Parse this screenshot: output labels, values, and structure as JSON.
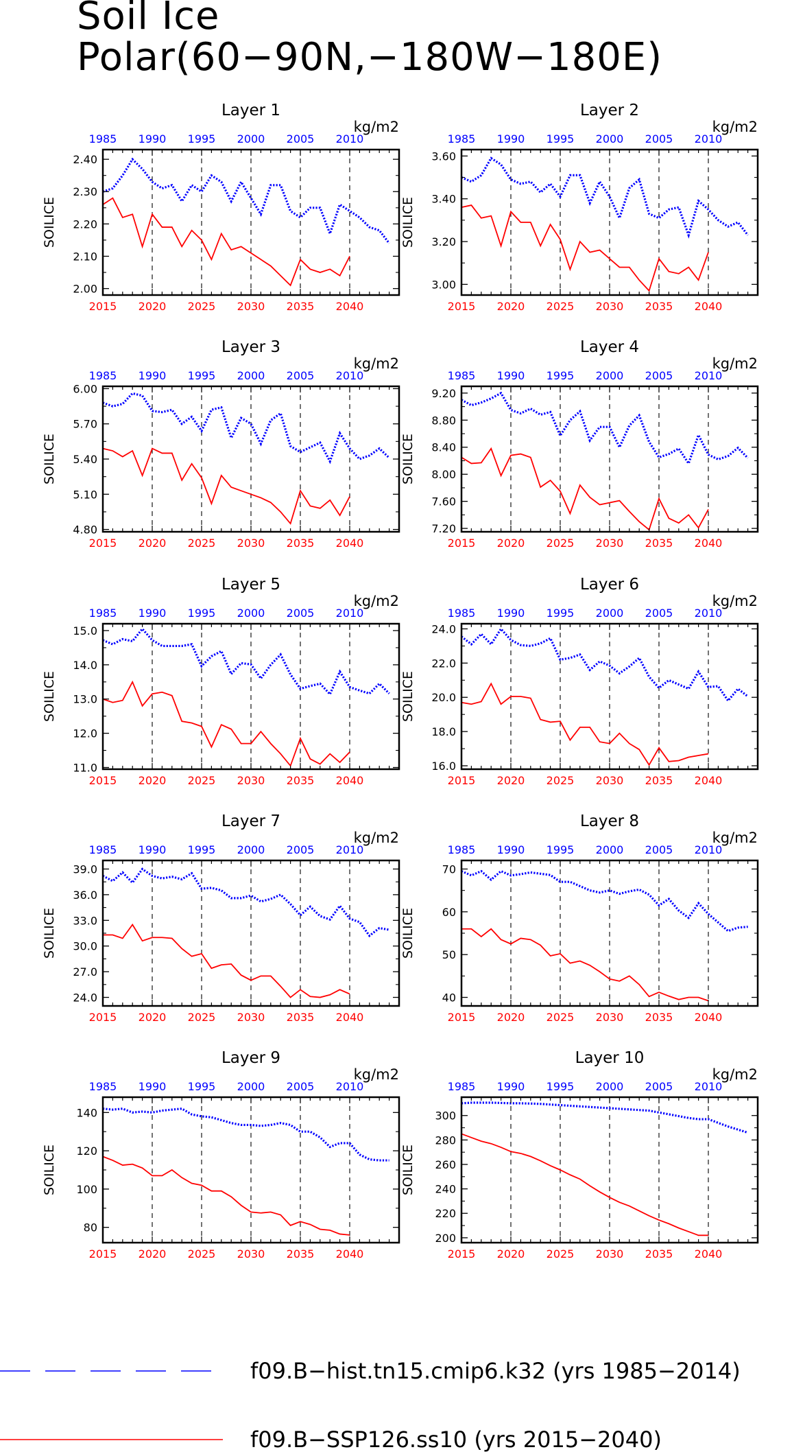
{
  "title": {
    "line1": "Soil Ice",
    "line2": "Polar(60−90N,−180W−180E)"
  },
  "colors": {
    "hist": "#0000ff",
    "ssp": "#ff0000",
    "axis": "#000000"
  },
  "legend": [
    {
      "label": "f09.B−hist.tn15.cmip6.k32 (yrs 1985−2014)",
      "color": "#0000ff",
      "style": "dashed"
    },
    {
      "label": "f09.B−SSP126.ss10 (yrs 2015−2040)",
      "color": "#ff0000",
      "style": "solid"
    }
  ],
  "chart_data": [
    {
      "type": "line",
      "title": "Layer 1",
      "ylabel": "SOILICE",
      "units": "kg/m2",
      "x_top_ticks": [
        "1985",
        "1990",
        "1995",
        "2000",
        "2005",
        "2010"
      ],
      "x_bottom_ticks": [
        "2015",
        "2020",
        "2025",
        "2030",
        "2035",
        "2040"
      ],
      "ylim": [
        1.98,
        2.43
      ],
      "yticks": [
        "2.00",
        "2.10",
        "2.20",
        "2.30",
        "2.40"
      ],
      "ytick_values": [
        2.0,
        2.1,
        2.2,
        2.3,
        2.4
      ],
      "series": [
        {
          "years": "1985-2014",
          "values": [
            2.3,
            2.31,
            2.35,
            2.4,
            2.37,
            2.33,
            2.31,
            2.32,
            2.27,
            2.32,
            2.3,
            2.35,
            2.33,
            2.27,
            2.33,
            2.28,
            2.23,
            2.32,
            2.32,
            2.24,
            2.22,
            2.25,
            2.25,
            2.17,
            2.26,
            2.24,
            2.22,
            2.19,
            2.18,
            2.14
          ]
        },
        {
          "years": "2015-2040",
          "values": [
            2.26,
            2.28,
            2.22,
            2.23,
            2.13,
            2.23,
            2.19,
            2.19,
            2.13,
            2.18,
            2.15,
            2.09,
            2.17,
            2.12,
            2.13,
            2.11,
            2.09,
            2.07,
            2.04,
            2.01,
            2.09,
            2.06,
            2.05,
            2.06,
            2.04,
            2.1
          ]
        }
      ]
    },
    {
      "type": "line",
      "title": "Layer 2",
      "ylabel": "SOILICE",
      "units": "kg/m2",
      "x_top_ticks": [
        "1985",
        "1990",
        "1995",
        "2000",
        "2005",
        "2010"
      ],
      "x_bottom_ticks": [
        "2015",
        "2020",
        "2025",
        "2030",
        "2035",
        "2040"
      ],
      "ylim": [
        2.95,
        3.63
      ],
      "yticks": [
        "3.00",
        "3.20",
        "3.40",
        "3.60"
      ],
      "ytick_values": [
        3.0,
        3.2,
        3.4,
        3.6
      ],
      "series": [
        {
          "years": "1985-2014",
          "values": [
            3.5,
            3.48,
            3.51,
            3.59,
            3.56,
            3.49,
            3.47,
            3.48,
            3.43,
            3.47,
            3.41,
            3.51,
            3.51,
            3.38,
            3.48,
            3.41,
            3.31,
            3.45,
            3.49,
            3.33,
            3.31,
            3.35,
            3.36,
            3.23,
            3.39,
            3.35,
            3.3,
            3.27,
            3.29,
            3.23
          ]
        },
        {
          "years": "2015-2040",
          "values": [
            3.36,
            3.37,
            3.31,
            3.32,
            3.18,
            3.34,
            3.29,
            3.29,
            3.18,
            3.28,
            3.21,
            3.07,
            3.2,
            3.15,
            3.16,
            3.12,
            3.08,
            3.08,
            3.02,
            2.97,
            3.12,
            3.06,
            3.05,
            3.08,
            3.02,
            3.15
          ]
        }
      ]
    },
    {
      "type": "line",
      "title": "Layer 3",
      "ylabel": "SOILICE",
      "units": "kg/m2",
      "x_top_ticks": [
        "1985",
        "1990",
        "1995",
        "2000",
        "2005",
        "2010"
      ],
      "x_bottom_ticks": [
        "2015",
        "2020",
        "2025",
        "2030",
        "2035",
        "2040"
      ],
      "ylim": [
        4.78,
        6.02
      ],
      "yticks": [
        "4.80",
        "5.10",
        "5.40",
        "5.70",
        "6.00"
      ],
      "ytick_values": [
        4.8,
        5.1,
        5.4,
        5.7,
        6.0
      ],
      "series": [
        {
          "years": "1985-2014",
          "values": [
            5.88,
            5.85,
            5.87,
            5.96,
            5.94,
            5.81,
            5.8,
            5.82,
            5.7,
            5.76,
            5.64,
            5.82,
            5.84,
            5.58,
            5.75,
            5.7,
            5.53,
            5.73,
            5.79,
            5.51,
            5.46,
            5.5,
            5.54,
            5.38,
            5.62,
            5.49,
            5.4,
            5.43,
            5.49,
            5.41
          ]
        },
        {
          "years": "2015-2040",
          "values": [
            5.49,
            5.47,
            5.42,
            5.47,
            5.26,
            5.49,
            5.45,
            5.45,
            5.22,
            5.36,
            5.24,
            5.02,
            5.26,
            5.16,
            5.13,
            5.1,
            5.07,
            5.03,
            4.95,
            4.85,
            5.13,
            5.0,
            4.98,
            5.05,
            4.92,
            5.08
          ]
        }
      ]
    },
    {
      "type": "line",
      "title": "Layer 4",
      "ylabel": "SOILICE",
      "units": "kg/m2",
      "x_top_ticks": [
        "1985",
        "1990",
        "1995",
        "2000",
        "2005",
        "2010"
      ],
      "x_bottom_ticks": [
        "2015",
        "2020",
        "2025",
        "2030",
        "2035",
        "2040"
      ],
      "ylim": [
        7.15,
        9.3
      ],
      "yticks": [
        "7.20",
        "7.60",
        "8.00",
        "8.40",
        "8.80",
        "9.20"
      ],
      "ytick_values": [
        7.2,
        7.6,
        8.0,
        8.4,
        8.8,
        9.2
      ],
      "series": [
        {
          "years": "1985-2014",
          "values": [
            9.1,
            9.02,
            9.06,
            9.12,
            9.2,
            8.95,
            8.9,
            8.97,
            8.88,
            8.92,
            8.57,
            8.8,
            8.93,
            8.5,
            8.7,
            8.7,
            8.4,
            8.72,
            8.87,
            8.48,
            8.25,
            8.3,
            8.38,
            8.16,
            8.58,
            8.29,
            8.22,
            8.27,
            8.39,
            8.24
          ]
        },
        {
          "years": "2015-2040",
          "values": [
            8.25,
            8.16,
            8.17,
            8.38,
            7.98,
            8.28,
            8.3,
            8.25,
            7.81,
            7.91,
            7.75,
            7.42,
            7.84,
            7.66,
            7.55,
            7.58,
            7.61,
            7.45,
            7.3,
            7.18,
            7.64,
            7.35,
            7.28,
            7.4,
            7.21,
            7.48
          ]
        }
      ]
    },
    {
      "type": "line",
      "title": "Layer 5",
      "ylabel": "SOILICE",
      "units": "kg/m2",
      "x_top_ticks": [
        "1985",
        "1990",
        "1995",
        "2000",
        "2005",
        "2010"
      ],
      "x_bottom_ticks": [
        "2015",
        "2020",
        "2025",
        "2030",
        "2035",
        "2040"
      ],
      "ylim": [
        10.95,
        15.2
      ],
      "yticks": [
        "11.0",
        "12.0",
        "13.0",
        "14.0",
        "15.0"
      ],
      "ytick_values": [
        11,
        12,
        13,
        14,
        15
      ],
      "series": [
        {
          "years": "1985-2014",
          "values": [
            14.72,
            14.6,
            14.75,
            14.69,
            15.05,
            14.72,
            14.55,
            14.55,
            14.55,
            14.6,
            13.96,
            14.25,
            14.4,
            13.73,
            14.05,
            14.01,
            13.6,
            14.0,
            14.3,
            13.72,
            13.3,
            13.38,
            13.45,
            13.14,
            13.8,
            13.35,
            13.25,
            13.16,
            13.45,
            13.16
          ]
        },
        {
          "years": "2015-2040",
          "values": [
            13.0,
            12.9,
            12.96,
            13.5,
            12.8,
            13.15,
            13.2,
            13.1,
            12.35,
            12.3,
            12.2,
            11.6,
            12.25,
            12.12,
            11.7,
            11.7,
            12.05,
            11.7,
            11.4,
            11.05,
            11.85,
            11.25,
            11.1,
            11.4,
            11.15,
            11.45
          ]
        }
      ]
    },
    {
      "type": "line",
      "title": "Layer 6",
      "ylabel": "SOILICE",
      "units": "kg/m2",
      "x_top_ticks": [
        "1985",
        "1990",
        "1995",
        "2000",
        "2005",
        "2010"
      ],
      "x_bottom_ticks": [
        "2015",
        "2020",
        "2025",
        "2030",
        "2035",
        "2040"
      ],
      "ylim": [
        15.8,
        24.3
      ],
      "yticks": [
        "16.0",
        "18.0",
        "20.0",
        "22.0",
        "24.0"
      ],
      "ytick_values": [
        16,
        18,
        20,
        22,
        24
      ],
      "series": [
        {
          "years": "1985-2014",
          "values": [
            23.55,
            23.1,
            23.7,
            23.1,
            24.0,
            23.35,
            23.05,
            23.0,
            23.15,
            23.45,
            22.2,
            22.3,
            22.5,
            21.6,
            22.1,
            21.85,
            21.4,
            21.8,
            22.3,
            21.2,
            20.55,
            21.0,
            20.75,
            20.5,
            21.5,
            20.6,
            20.65,
            19.8,
            20.5,
            20.05
          ]
        },
        {
          "years": "2015-2040",
          "values": [
            19.7,
            19.6,
            19.75,
            20.8,
            19.6,
            20.05,
            20.05,
            19.95,
            18.7,
            18.55,
            18.6,
            17.5,
            18.25,
            18.25,
            17.4,
            17.3,
            17.9,
            17.3,
            16.95,
            16.05,
            17.05,
            16.25,
            16.3,
            16.5,
            16.6,
            16.7
          ]
        }
      ]
    },
    {
      "type": "line",
      "title": "Layer 7",
      "ylabel": "SOILICE",
      "units": "kg/m2",
      "x_top_ticks": [
        "1985",
        "1990",
        "1995",
        "2000",
        "2005",
        "2010"
      ],
      "x_bottom_ticks": [
        "2015",
        "2020",
        "2025",
        "2030",
        "2035",
        "2040"
      ],
      "ylim": [
        23.0,
        40.0
      ],
      "yticks": [
        "24.0",
        "27.0",
        "30.0",
        "33.0",
        "36.0",
        "39.0"
      ],
      "ytick_values": [
        24,
        27,
        30,
        33,
        36,
        39
      ],
      "series": [
        {
          "years": "1985-2014",
          "values": [
            38.2,
            37.6,
            38.6,
            37.4,
            39.0,
            38.2,
            37.9,
            38.1,
            37.8,
            38.5,
            36.7,
            36.8,
            36.5,
            35.6,
            35.6,
            35.9,
            35.2,
            35.5,
            36.0,
            34.9,
            33.6,
            34.6,
            33.5,
            33.1,
            34.7,
            33.2,
            32.8,
            31.2,
            32.1,
            31.9
          ]
        },
        {
          "years": "2015-2040",
          "values": [
            31.3,
            31.3,
            30.9,
            32.5,
            30.6,
            31.0,
            31.0,
            30.9,
            29.7,
            28.8,
            29.1,
            27.4,
            27.8,
            27.9,
            26.6,
            26.0,
            26.5,
            26.5,
            25.3,
            24.0,
            24.9,
            24.1,
            24.0,
            24.3,
            24.9,
            24.4
          ]
        }
      ]
    },
    {
      "type": "line",
      "title": "Layer 8",
      "ylabel": "SOILICE",
      "units": "kg/m2",
      "x_top_ticks": [
        "1985",
        "1990",
        "1995",
        "2000",
        "2005",
        "2010"
      ],
      "x_bottom_ticks": [
        "2015",
        "2020",
        "2025",
        "2030",
        "2035",
        "2040"
      ],
      "ylim": [
        38,
        72
      ],
      "yticks": [
        "40",
        "50",
        "60",
        "70"
      ],
      "ytick_values": [
        40,
        50,
        60,
        70
      ],
      "series": [
        {
          "years": "1985-2014",
          "values": [
            69.5,
            68.5,
            69.5,
            67.5,
            69.5,
            68.5,
            68.8,
            69.2,
            68.9,
            68.6,
            67.0,
            67.0,
            66.0,
            65.0,
            64.5,
            65.0,
            64.2,
            64.8,
            65.2,
            64.0,
            61.5,
            63.0,
            60.3,
            58.6,
            62.0,
            59.5,
            57.5,
            55.5,
            56.3,
            56.5
          ]
        },
        {
          "years": "2015-2040",
          "values": [
            56.0,
            56.0,
            54.2,
            56.0,
            53.5,
            52.5,
            53.8,
            53.5,
            52.2,
            49.7,
            50.2,
            48.0,
            48.5,
            47.5,
            46.0,
            44.3,
            43.8,
            45.0,
            43.0,
            40.2,
            41.2,
            40.3,
            39.5,
            40.0,
            40.0,
            39.2
          ]
        }
      ]
    },
    {
      "type": "line",
      "title": "Layer 9",
      "ylabel": "SOILICE",
      "units": "kg/m2",
      "x_top_ticks": [
        "1985",
        "1990",
        "1995",
        "2000",
        "2005",
        "2010"
      ],
      "x_bottom_ticks": [
        "2015",
        "2020",
        "2025",
        "2030",
        "2035",
        "2040"
      ],
      "ylim": [
        72,
        148
      ],
      "yticks": [
        "80",
        "100",
        "120",
        "140"
      ],
      "ytick_values": [
        80,
        100,
        120,
        140
      ],
      "series": [
        {
          "years": "1985-2014",
          "values": [
            142.0,
            141.5,
            142.0,
            140.0,
            140.5,
            140.0,
            141.0,
            141.5,
            142.0,
            139.0,
            138.0,
            137.5,
            136.0,
            134.5,
            133.5,
            133.5,
            133.0,
            133.5,
            134.5,
            133.5,
            130.0,
            130.0,
            127.0,
            122.0,
            124.0,
            124.0,
            118.0,
            115.5,
            115.0,
            115.0
          ]
        },
        {
          "years": "2015-2040",
          "values": [
            117.0,
            115.0,
            112.5,
            113.0,
            111.0,
            107.0,
            107.0,
            110.0,
            106.0,
            103.0,
            102.0,
            99.0,
            99.0,
            96.0,
            91.5,
            88.0,
            87.5,
            88.0,
            86.5,
            81.0,
            83.0,
            81.5,
            79.0,
            78.5,
            76.5,
            76.0
          ]
        }
      ]
    },
    {
      "type": "line",
      "title": "Layer 10",
      "ylabel": "SOILICE",
      "units": "kg/m2",
      "x_top_ticks": [
        "1985",
        "1990",
        "1995",
        "2000",
        "2005",
        "2010"
      ],
      "x_bottom_ticks": [
        "2015",
        "2020",
        "2025",
        "2030",
        "2035",
        "2040"
      ],
      "ylim": [
        196,
        315
      ],
      "yticks": [
        "200",
        "220",
        "240",
        "260",
        "280",
        "300"
      ],
      "ytick_values": [
        200,
        220,
        240,
        260,
        280,
        300
      ],
      "series": [
        {
          "years": "1985-2014",
          "values": [
            310.0,
            310.5,
            310.5,
            310.5,
            310.3,
            310.0,
            310.0,
            309.8,
            309.5,
            309.0,
            308.5,
            308.0,
            307.5,
            307.0,
            306.5,
            306.0,
            305.5,
            305.0,
            304.5,
            304.0,
            302.5,
            301.0,
            299.5,
            298.0,
            297.0,
            297.0,
            294.0,
            291.0,
            288.5,
            286.0
          ]
        },
        {
          "years": "2015-2040",
          "values": [
            285.0,
            282.0,
            279.0,
            277.0,
            274.0,
            270.5,
            269.0,
            266.5,
            263.0,
            259.0,
            255.5,
            251.5,
            248.0,
            242.5,
            237.5,
            233.0,
            229.0,
            226.0,
            222.0,
            218.0,
            214.5,
            211.5,
            208.0,
            205.0,
            202.0,
            202.0
          ]
        }
      ]
    }
  ]
}
